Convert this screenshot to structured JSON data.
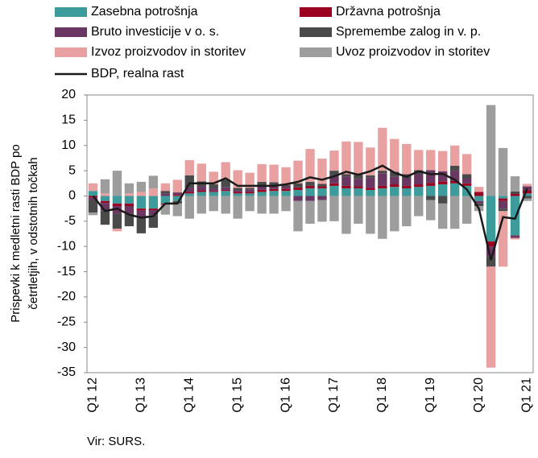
{
  "chart_data": {
    "type": "bar",
    "ylabel_lines": [
      "Prispevki k medletni rasti BDP po",
      "četrtletjih, v odstotnih točkah"
    ],
    "source": "Vir: SURS.",
    "categories": [
      "Q1 12",
      null,
      null,
      null,
      "Q1 13",
      null,
      null,
      null,
      "Q1 14",
      null,
      null,
      null,
      "Q1 15",
      null,
      null,
      null,
      "Q1 16",
      null,
      null,
      null,
      "Q1 17",
      null,
      null,
      null,
      "Q1 18",
      null,
      null,
      null,
      "Q1 19",
      null,
      null,
      null,
      "Q1 20",
      null,
      null,
      null,
      "Q1 21"
    ],
    "ylim": [
      -35,
      20
    ],
    "yticks": [
      -35,
      -30,
      -25,
      -20,
      -15,
      -10,
      -5,
      0,
      5,
      10,
      15,
      20
    ],
    "series": [
      {
        "name": "Zasebna potrošnja",
        "color": "#3d9b9b",
        "values": [
          1,
          -1,
          -1.5,
          -1.5,
          -2.5,
          -2.5,
          -1.5,
          -1,
          0.5,
          0.8,
          0.8,
          1,
          0.5,
          0.5,
          0.8,
          1,
          1,
          1.2,
          1.5,
          1.5,
          2,
          1.5,
          1.5,
          1.2,
          1.5,
          1.8,
          1.5,
          1.8,
          2,
          2.3,
          2.5,
          2,
          -1,
          -9,
          -0.5,
          -7.8,
          0.5
        ]
      },
      {
        "name": "Državna potrošnja",
        "color": "#9b0020",
        "values": [
          -0.3,
          -0.4,
          -0.5,
          -0.5,
          -0.4,
          -0.3,
          -0.2,
          0.2,
          0.3,
          0.3,
          0.2,
          0.2,
          0.3,
          0.3,
          0.4,
          0.4,
          0.4,
          0.5,
          0.5,
          0.4,
          0.5,
          0.5,
          0.4,
          0.4,
          0.5,
          0.5,
          0.5,
          0.5,
          0.6,
          0.6,
          0.5,
          0.5,
          0.8,
          -1,
          -0.5,
          0.4,
          0.6
        ]
      },
      {
        "name": "Bruto investicije v o. s.",
        "color": "#6a3763",
        "values": [
          -0.5,
          -1.5,
          -1.5,
          -1.5,
          -1.5,
          -1,
          0.5,
          0.5,
          0.8,
          0.8,
          0.5,
          0.5,
          0.3,
          0.5,
          0.8,
          0.5,
          0.5,
          -1,
          -1,
          -0.8,
          1.5,
          1.8,
          1.5,
          2,
          2.5,
          1.5,
          1.5,
          2,
          2.5,
          2,
          2,
          1,
          -0.5,
          -2,
          -1.5,
          -0.5,
          0.8
        ]
      },
      {
        "name": "Spremembe zalog in v. p.",
        "color": "#4a4a4a",
        "values": [
          -2.5,
          -2.8,
          -3,
          -2.5,
          -3,
          -2.5,
          0.5,
          -0.5,
          2.5,
          1,
          0.8,
          1.5,
          0.5,
          0.3,
          0.8,
          0.8,
          0.3,
          0.8,
          0.8,
          0.5,
          1,
          0.5,
          0.8,
          0.5,
          0.5,
          1,
          0.8,
          0.8,
          -0.8,
          -1.5,
          1,
          0.8,
          -0.5,
          -2,
          -0.5,
          0.5,
          -0.5
        ]
      },
      {
        "name": "Izvoz proizvodov in storitev",
        "color": "#e8a0a0",
        "values": [
          1.5,
          0.5,
          -0.5,
          0.5,
          0.8,
          1.5,
          1.5,
          2.5,
          3,
          3.5,
          2.5,
          3.5,
          3.5,
          3,
          3.5,
          3.5,
          3.5,
          4.5,
          6.5,
          5,
          4,
          6.5,
          6.5,
          5.5,
          8.5,
          6.5,
          6,
          4,
          4,
          4,
          4,
          4,
          1,
          -20,
          -11,
          -0.3,
          0.5
        ]
      },
      {
        "name": "Uvoz proizvodov in storitev",
        "color": "#9d9d9d",
        "values": [
          -0.5,
          2.8,
          5,
          2,
          2,
          2.5,
          -2,
          -2.5,
          -4.5,
          -3.5,
          -3,
          -3.5,
          -4.5,
          -3,
          -3.5,
          -3.5,
          -3,
          -6,
          -4.5,
          -4.3,
          -5,
          -7.5,
          -5.5,
          -7.5,
          -8.5,
          -7,
          -6,
          -4,
          -4,
          -5,
          -6.5,
          -5.5,
          -1,
          18,
          9.5,
          3,
          -0.5
        ]
      }
    ],
    "line": {
      "name": "BDP, realna rast",
      "color": "#1a1a1a",
      "values": [
        0,
        -3,
        -2.5,
        -3.7,
        -4.3,
        -4,
        -1.5,
        -1.5,
        2.5,
        2.5,
        2.5,
        3.5,
        2,
        2,
        2,
        2,
        2.3,
        2.8,
        3.7,
        3.2,
        3.9,
        4.8,
        4.2,
        4.9,
        6,
        4.6,
        3.8,
        4.9,
        4.3,
        4.4,
        3.2,
        1.3,
        -2.5,
        -12.7,
        -4.2,
        -4.5,
        1.5
      ]
    }
  }
}
